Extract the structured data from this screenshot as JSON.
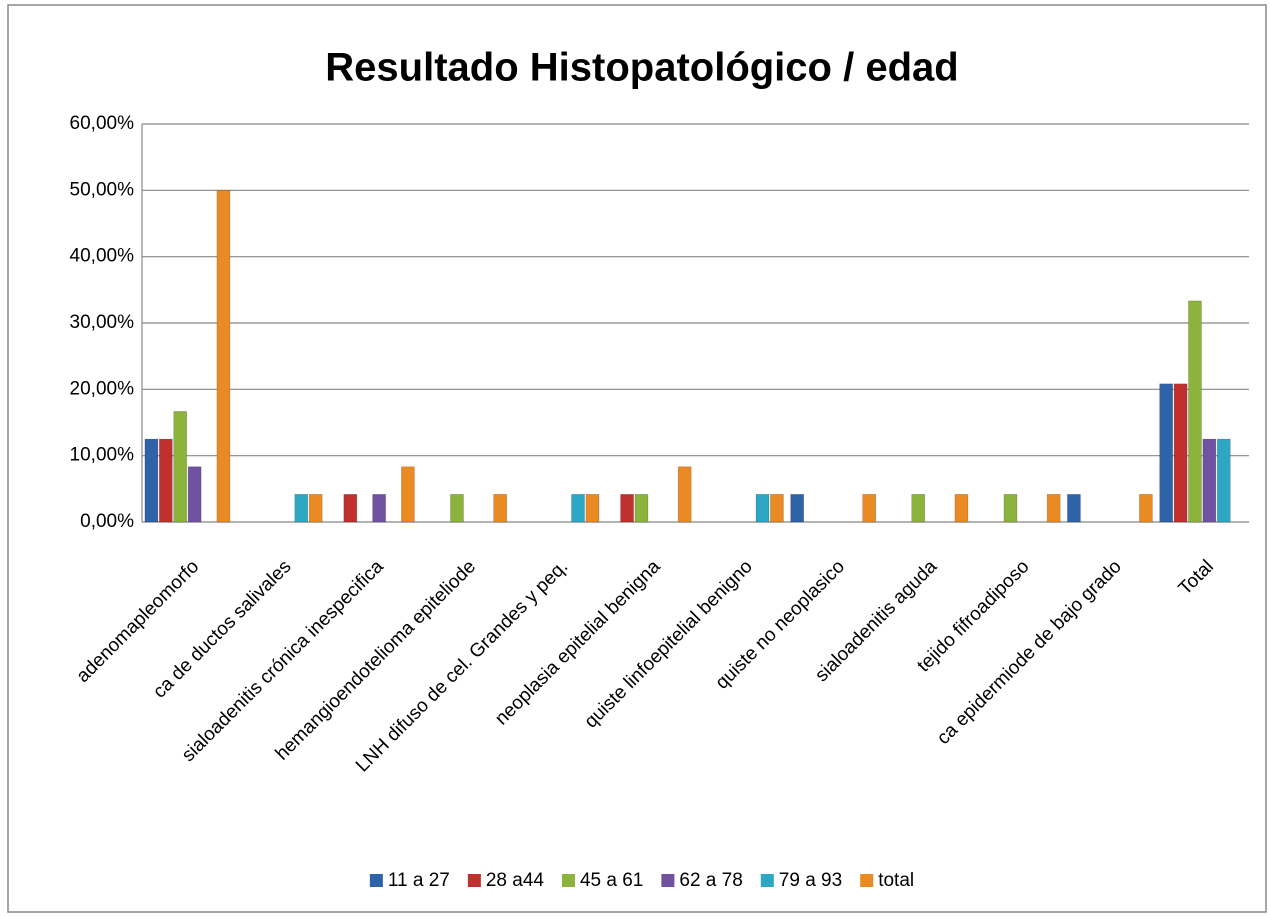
{
  "chart_data": {
    "type": "bar",
    "title": "Resultado Histopatológico / edad",
    "categories": [
      "adenomapleomorfo",
      "ca de ductos salivales",
      "sialoadenitis crónica inespecifica",
      "hemangioendotelioma epiteliode",
      "LNH difuso de cel. Grandes y peq.",
      "neoplasia epitelial benigna",
      "quiste linfoepitelial benigno",
      "quiste no neoplasico",
      "sialoadenitis aguda",
      "tejido fifroadiposo",
      "ca epidermiode de bajo grado",
      "Total"
    ],
    "series": [
      {
        "name": "11 a 27",
        "color": "#2e63a8",
        "values": [
          12.5,
          0,
          0,
          0,
          0,
          0,
          0,
          4.17,
          0,
          0,
          4.17,
          20.83
        ]
      },
      {
        "name": "28 a44",
        "color": "#c0302f",
        "values": [
          12.5,
          0,
          4.17,
          0,
          0,
          4.17,
          0,
          0,
          0,
          0,
          0,
          20.83
        ]
      },
      {
        "name": "45 a 61",
        "color": "#8cb43c",
        "values": [
          16.67,
          0,
          0,
          4.17,
          0,
          4.17,
          0,
          0,
          4.17,
          4.17,
          0,
          33.33
        ]
      },
      {
        "name": "62 a 78",
        "color": "#7052a0",
        "values": [
          8.33,
          0,
          4.17,
          0,
          0,
          0,
          0,
          0,
          0,
          0,
          0,
          12.5
        ]
      },
      {
        "name": "79 a 93",
        "color": "#2ea7c4",
        "values": [
          0,
          4.17,
          0,
          0,
          4.17,
          0,
          4.17,
          0,
          0,
          0,
          0,
          12.5
        ]
      },
      {
        "name": "total",
        "color": "#ea8a23",
        "values": [
          50,
          4.17,
          8.33,
          4.17,
          4.17,
          8.33,
          4.17,
          4.17,
          4.17,
          4.17,
          4.17,
          0
        ]
      }
    ],
    "ylim": [
      0,
      60
    ],
    "yticks": [
      {
        "value": 0,
        "label": "0,00%"
      },
      {
        "value": 10,
        "label": "10,00%"
      },
      {
        "value": 20,
        "label": "20,00%"
      },
      {
        "value": 30,
        "label": "30,00%"
      },
      {
        "value": 40,
        "label": "40,00%"
      },
      {
        "value": 50,
        "label": "50,00%"
      },
      {
        "value": 60,
        "label": "60,00%"
      }
    ],
    "grid": true
  }
}
